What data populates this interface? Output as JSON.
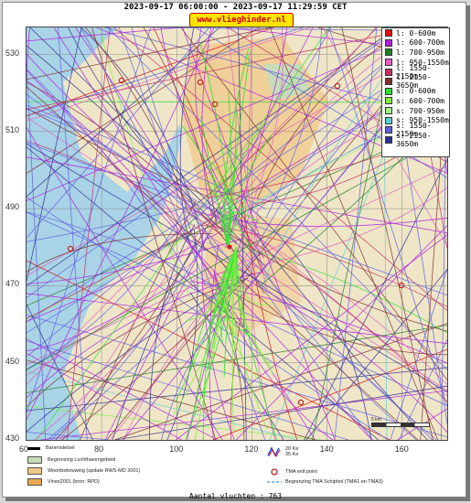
{
  "title": "2023-09-17 06:00:00 - 2023-09-17 11:29:59 CET",
  "site": "www.vlieghinder.nl",
  "y_ticks": [
    {
      "label": "530",
      "value": 530
    },
    {
      "label": "510",
      "value": 510
    },
    {
      "label": "490",
      "value": 490
    },
    {
      "label": "470",
      "value": 470
    },
    {
      "label": "450",
      "value": 450
    },
    {
      "label": "430",
      "value": 430
    }
  ],
  "x_ticks": [
    {
      "label": "60",
      "value": 60
    },
    {
      "label": "80",
      "value": 80
    },
    {
      "label": "100",
      "value": 100
    },
    {
      "label": "120",
      "value": 120
    },
    {
      "label": "140",
      "value": 140
    },
    {
      "label": "160",
      "value": 160
    }
  ],
  "legend": [
    {
      "label": "l: 0-600m",
      "color": "#e01010"
    },
    {
      "label": "l: 600-700m",
      "color": "#b020e0"
    },
    {
      "label": "l: 700-950m",
      "color": "#208020"
    },
    {
      "label": "l: 950-1550m",
      "color": "#e060c0"
    },
    {
      "label": "l: 1550-2150m",
      "color": "#c03060"
    },
    {
      "label": "l: 2150-3650m",
      "color": "#803030"
    },
    {
      "label": "s: 0-600m",
      "color": "#30e030"
    },
    {
      "label": "s: 600-700m",
      "color": "#80f040"
    },
    {
      "label": "s: 700-950m",
      "color": "#a0f080"
    },
    {
      "label": "s: 950-1550m",
      "color": "#60d0d0"
    },
    {
      "label": "s: 1550-2150m",
      "color": "#6060e0"
    },
    {
      "label": "s: 2150-3650m",
      "color": "#303090"
    }
  ],
  "map_legend": {
    "runways": "Banenstelsel",
    "airport_boundary": "Begrenzing Luchthavengebied",
    "residential": "Woonbebouwing (update RWS-MD 2001)",
    "vinex": "Vinex2001 (bron: RPD)",
    "noise_contours": [
      "20 Ke",
      "35 Ke"
    ],
    "tma_exit": "TMA exit point",
    "tma_boundary": "Begrenzing TMA Schiphol  (TMA1 en TMA3)"
  },
  "scale_label": "5 km",
  "footer": "Aantal vluchten : 763",
  "colors": {
    "water": "#a9d3e6",
    "land": "#efe6c8",
    "urban": "#f0c88a",
    "green_area": "#c7dcb9"
  }
}
